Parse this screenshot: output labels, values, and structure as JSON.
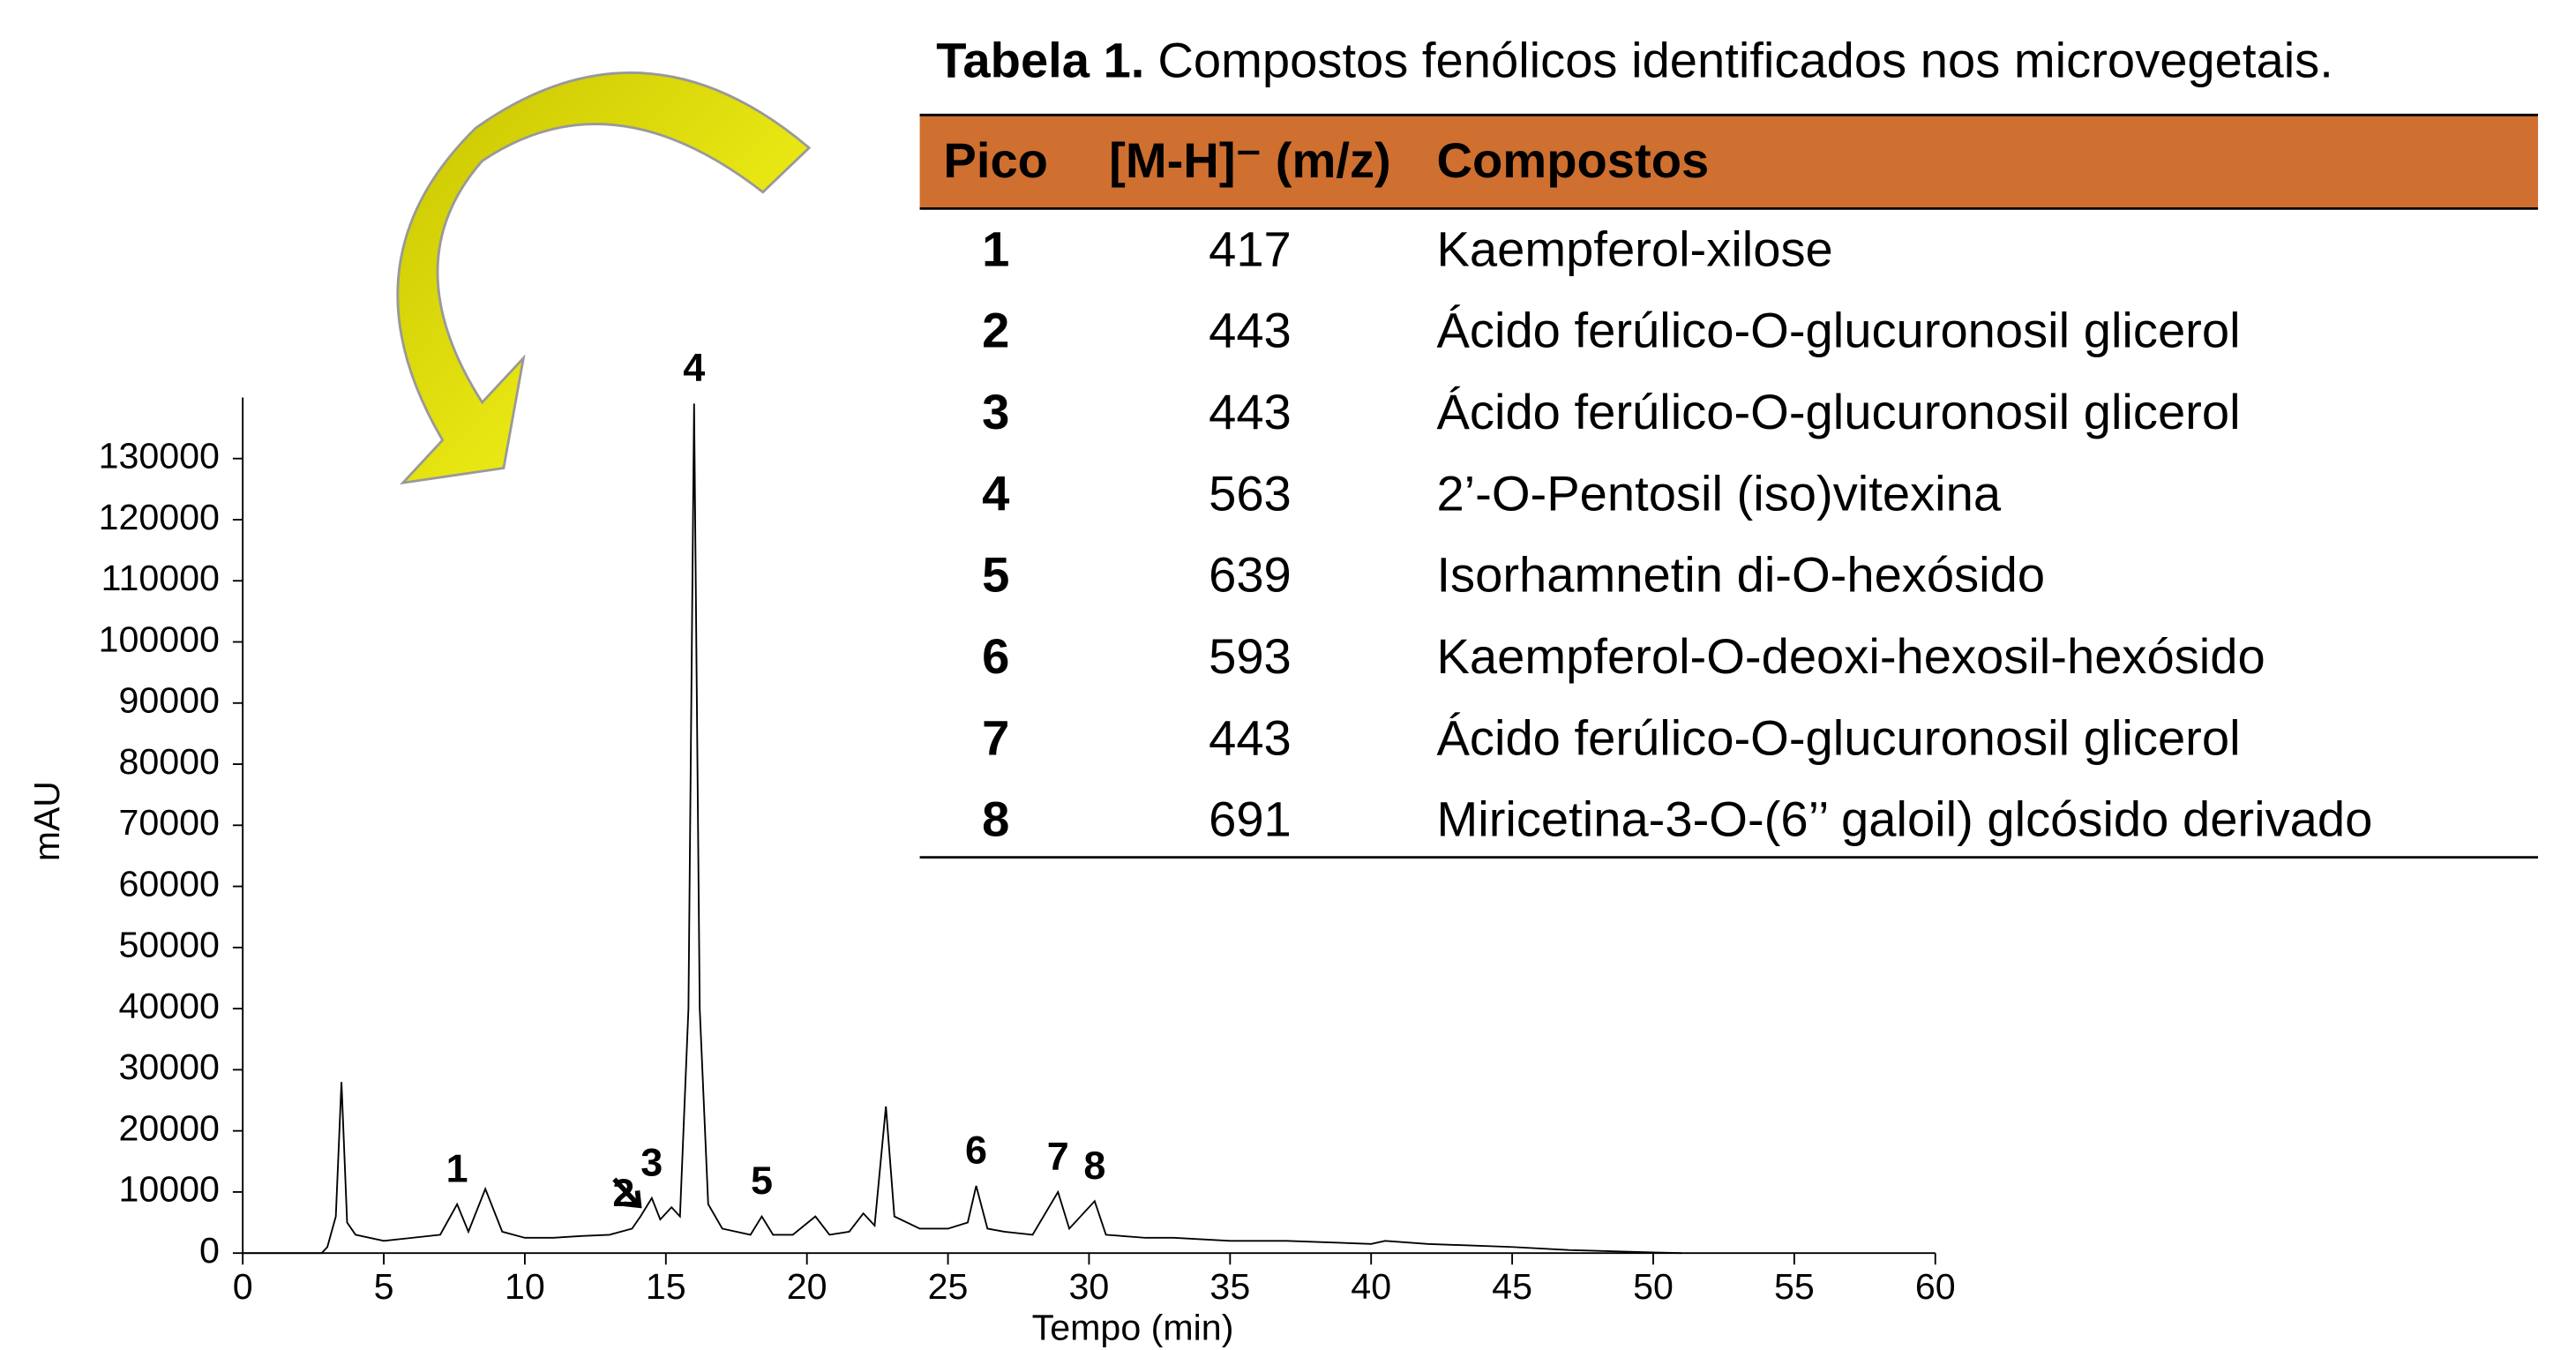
{
  "chart_data": {
    "type": "line",
    "x_label": "Tempo (min)",
    "y_label": "mAU",
    "color": "#000000",
    "x": [
      0,
      2.8,
      3.0,
      3.3,
      3.5,
      3.7,
      4,
      5,
      6,
      7,
      7.6,
      8,
      8.6,
      9.2,
      10,
      11,
      12,
      13,
      13.8,
      14.1,
      14.5,
      14.8,
      15.2,
      15.5,
      15.8,
      16,
      16.2,
      16.5,
      17,
      18,
      18.4,
      18.8,
      19.5,
      20.3,
      20.8,
      21.5,
      22,
      22.4,
      22.8,
      23.1,
      24,
      25,
      25.7,
      26,
      26.4,
      27,
      28,
      28.9,
      29.3,
      30.2,
      30.6,
      32,
      33,
      35,
      37,
      40,
      40.5,
      42,
      45,
      47,
      50,
      51
    ],
    "values": [
      0,
      0,
      1000,
      6000,
      28000,
      5000,
      3000,
      2000,
      2500,
      3000,
      8000,
      3500,
      10500,
      3500,
      2500,
      2500,
      2800,
      3000,
      4000,
      6000,
      9000,
      5500,
      7500,
      6000,
      40000,
      139000,
      40000,
      8000,
      4000,
      3000,
      6000,
      3000,
      3000,
      6000,
      3000,
      3500,
      6500,
      4500,
      24000,
      6000,
      4000,
      4000,
      5000,
      11000,
      4000,
      3500,
      3000,
      10000,
      4000,
      8500,
      3000,
      2500,
      2500,
      2000,
      2000,
      1500,
      2000,
      1500,
      1000,
      500,
      100,
      0
    ],
    "xlim": [
      0,
      60
    ],
    "xticks": [
      0,
      5,
      10,
      15,
      20,
      25,
      30,
      35,
      40,
      45,
      50,
      55,
      60
    ],
    "ylim": [
      0,
      140000
    ],
    "yticks": [
      0,
      10000,
      20000,
      30000,
      40000,
      50000,
      60000,
      70000,
      80000,
      90000,
      100000,
      110000,
      120000,
      130000
    ],
    "peak_labels": [
      {
        "label": "1",
        "x": 7.6
      },
      {
        "label": "2",
        "x": 13.5
      },
      {
        "label": "3",
        "x": 14.5
      },
      {
        "label": "4",
        "x": 16
      },
      {
        "label": "5",
        "x": 18.4
      },
      {
        "label": "6",
        "x": 26
      },
      {
        "label": "7",
        "x": 28.9
      },
      {
        "label": "8",
        "x": 30.2
      }
    ]
  },
  "table": {
    "caption_bold": "Tabela 1.",
    "caption": "Compostos fenólicos identificados nos microvegetais.",
    "header": [
      "Pico",
      "[M-H]⁻ (m/z)",
      "Compostos"
    ],
    "rows": [
      [
        "1",
        "417",
        "Kaempferol-xilose"
      ],
      [
        "2",
        "443",
        "Ácido ferúlico-O-glucuronosil glicerol"
      ],
      [
        "3",
        "443",
        "Ácido ferúlico-O-glucuronosil glicerol"
      ],
      [
        "4",
        "563",
        "2’-O-Pentosil (iso)vitexina"
      ],
      [
        "5",
        "639",
        "Isorhamnetin di-O-hexósido"
      ],
      [
        "6",
        "593",
        "Kaempferol-O-deoxi-hexosil-hexósido"
      ],
      [
        "7",
        "443",
        "Ácido ferúlico-O-glucuronosil glicerol"
      ],
      [
        "8",
        "691",
        "Miricetina-3-O-(6’’ galoil) glcósido derivado"
      ]
    ]
  }
}
